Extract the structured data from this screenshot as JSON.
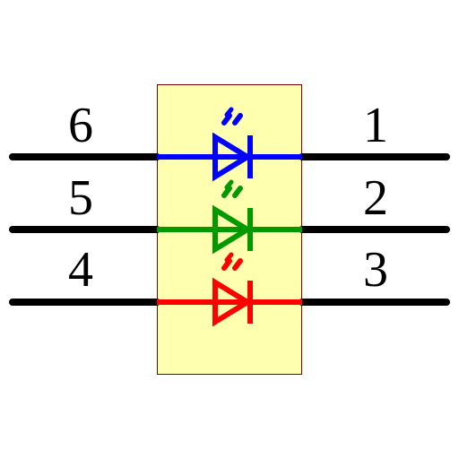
{
  "component": {
    "body_fill": "#ffffb0",
    "body_stroke": "#800000",
    "lead_color": "#000000"
  },
  "pins": {
    "left": [
      "6",
      "5",
      "4"
    ],
    "right": [
      "1",
      "2",
      "3"
    ]
  },
  "leds": [
    {
      "color_name": "blue",
      "color": "#0000ff"
    },
    {
      "color_name": "green",
      "color": "#009900"
    },
    {
      "color_name": "red",
      "color": "#ff0000"
    }
  ]
}
